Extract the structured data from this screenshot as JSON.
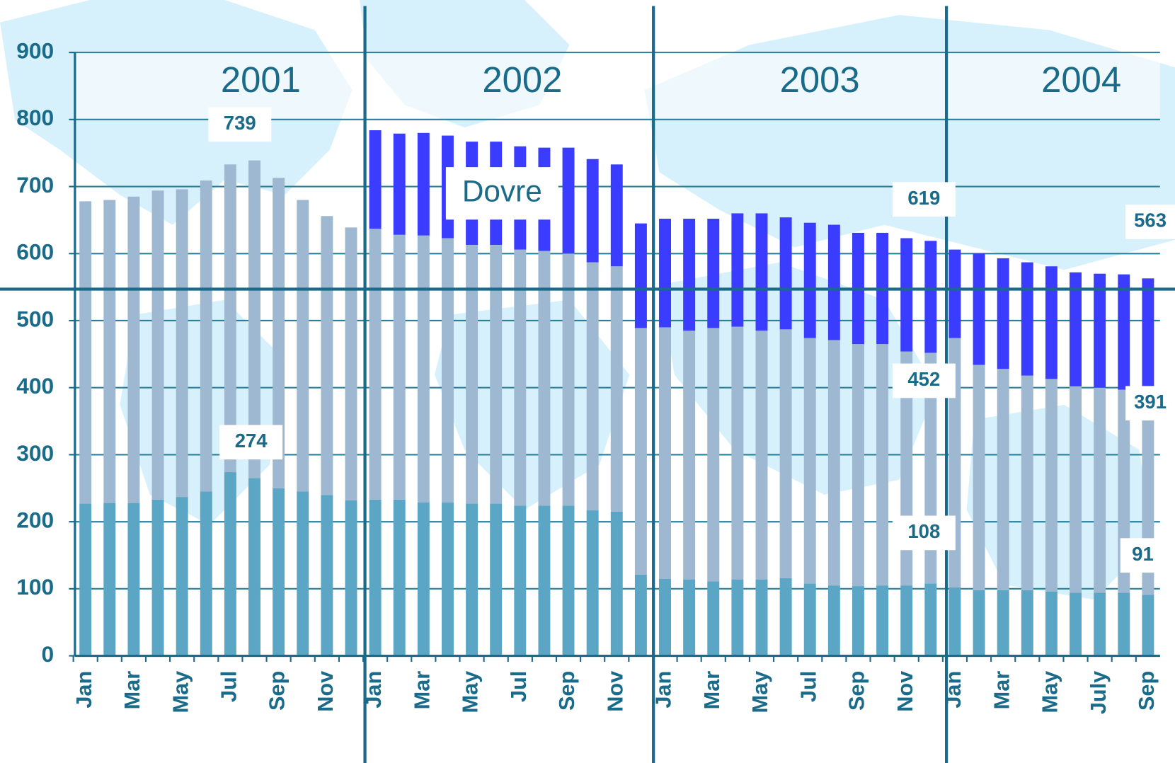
{
  "chart_data": {
    "type": "bar",
    "stacked": true,
    "categories": [
      "Jan",
      null,
      "Mar",
      null,
      "May",
      null,
      "Jul",
      null,
      "Sep",
      null,
      "Nov",
      null,
      "Jan",
      null,
      "Mar",
      null,
      "May",
      null,
      "Jul",
      null,
      "Sep",
      null,
      "Nov",
      null,
      "Jan",
      null,
      "Mar",
      null,
      "May",
      null,
      "Jul",
      null,
      "Sep",
      null,
      "Nov",
      null,
      "Jan",
      null,
      "Mar",
      null,
      "May",
      null,
      "July",
      null,
      "Sep"
    ],
    "series": [
      {
        "color": "#5aa6c4",
        "values": [
          227,
          228,
          228,
          233,
          237,
          245,
          274,
          265,
          250,
          245,
          240,
          232,
          233,
          233,
          229,
          229,
          227,
          227,
          224,
          224,
          224,
          217,
          215,
          121,
          115,
          114,
          111,
          114,
          114,
          116,
          108,
          105,
          104,
          105,
          105,
          108,
          102,
          98,
          98,
          98,
          96,
          94,
          94,
          94,
          91
        ]
      },
      {
        "color": "#9fb8d2",
        "values": [
          451,
          452,
          457,
          461,
          459,
          464,
          459,
          474,
          463,
          435,
          416,
          407,
          404,
          395,
          398,
          394,
          386,
          386,
          382,
          380,
          376,
          370,
          366,
          368,
          375,
          371,
          378,
          377,
          371,
          371,
          366,
          366,
          361,
          360,
          349,
          344,
          372,
          336,
          330,
          320,
          317,
          308,
          306,
          303,
          300
        ]
      },
      {
        "color": "#3a3cff",
        "values": [
          0,
          0,
          0,
          0,
          0,
          0,
          0,
          0,
          0,
          0,
          0,
          0,
          147,
          151,
          153,
          153,
          154,
          154,
          154,
          154,
          158,
          154,
          152,
          156,
          162,
          167,
          163,
          169,
          175,
          167,
          172,
          172,
          166,
          166,
          169,
          167,
          132,
          166,
          165,
          169,
          168,
          170,
          170,
          172,
          172
        ]
      }
    ],
    "groups": [
      "2001",
      "2002",
      "2003",
      "2004"
    ],
    "annotations": [
      "739",
      "274",
      "619",
      "452",
      "108",
      "563",
      "391",
      "91",
      "Dovre"
    ],
    "reference_line": 547,
    "ylim": [
      0,
      900
    ],
    "yticks": [
      0,
      100,
      200,
      300,
      400,
      500,
      600,
      700,
      800,
      900
    ],
    "grid": true
  }
}
